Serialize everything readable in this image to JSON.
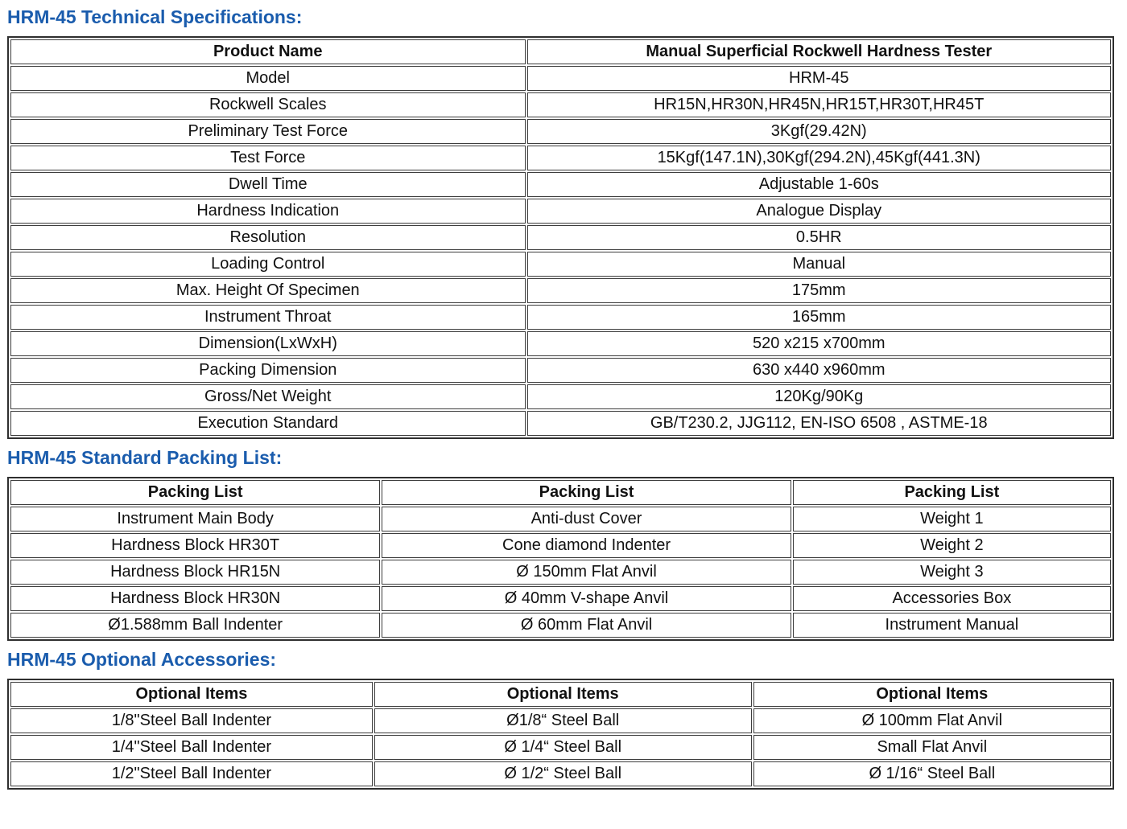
{
  "colors": {
    "accent_title": "#1a5cad",
    "table_border": "#3d3d3d",
    "text": "#111111",
    "background": "#ffffff"
  },
  "sections": [
    {
      "id": "technical-specifications",
      "title": "HRM-45 Technical Specifications:",
      "headers": [
        "Product Name",
        "Manual Superficial Rockwell Hardness Tester"
      ],
      "rows": [
        [
          "Model",
          "HRM-45"
        ],
        [
          "Rockwell Scales",
          "HR15N,HR30N,HR45N,HR15T,HR30T,HR45T"
        ],
        [
          "Preliminary Test Force",
          "3Kgf(29.42N)"
        ],
        [
          "Test Force",
          "15Kgf(147.1N),30Kgf(294.2N),45Kgf(441.3N)"
        ],
        [
          "Dwell Time",
          "Adjustable 1-60s"
        ],
        [
          "Hardness Indication",
          "Analogue Display"
        ],
        [
          "Resolution",
          "0.5HR"
        ],
        [
          "Loading Control",
          "Manual"
        ],
        [
          "Max. Height Of Specimen",
          "175mm"
        ],
        [
          "Instrument Throat",
          "165mm"
        ],
        [
          "Dimension(LxWxH)",
          "520 x215 x700mm"
        ],
        [
          "Packing Dimension",
          "630 x440 x960mm"
        ],
        [
          "Gross/Net Weight",
          "120Kg/90Kg"
        ],
        [
          "Execution Standard",
          "GB/T230.2, JJG112, EN-ISO 6508 , ASTME-18"
        ]
      ]
    },
    {
      "id": "standard-packing-list",
      "title": "HRM-45 Standard Packing List:",
      "headers": [
        "Packing List",
        "Packing List",
        "Packing List"
      ],
      "rows": [
        [
          "Instrument Main Body",
          "Anti-dust Cover",
          "Weight 1"
        ],
        [
          "Hardness Block HR30T",
          "Cone diamond Indenter",
          "Weight 2"
        ],
        [
          "Hardness Block HR15N",
          "Ø 150mm Flat Anvil",
          "Weight 3"
        ],
        [
          "Hardness Block HR30N",
          "Ø 40mm V-shape Anvil",
          "Accessories Box"
        ],
        [
          "Ø1.588mm Ball Indenter",
          "Ø 60mm Flat Anvil",
          "Instrument Manual"
        ]
      ]
    },
    {
      "id": "optional-accessories",
      "title": "HRM-45 Optional Accessories:",
      "headers": [
        "Optional Items",
        "Optional Items",
        "Optional Items"
      ],
      "rows": [
        [
          "1/8\"Steel Ball Indenter",
          "Ø1/8“ Steel Ball",
          "Ø 100mm Flat Anvil"
        ],
        [
          "1/4\"Steel Ball Indenter",
          "Ø 1/4“ Steel Ball",
          "Small Flat Anvil"
        ],
        [
          "1/2\"Steel Ball Indenter",
          "Ø 1/2“ Steel Ball",
          "Ø 1/16“ Steel Ball"
        ]
      ]
    }
  ]
}
